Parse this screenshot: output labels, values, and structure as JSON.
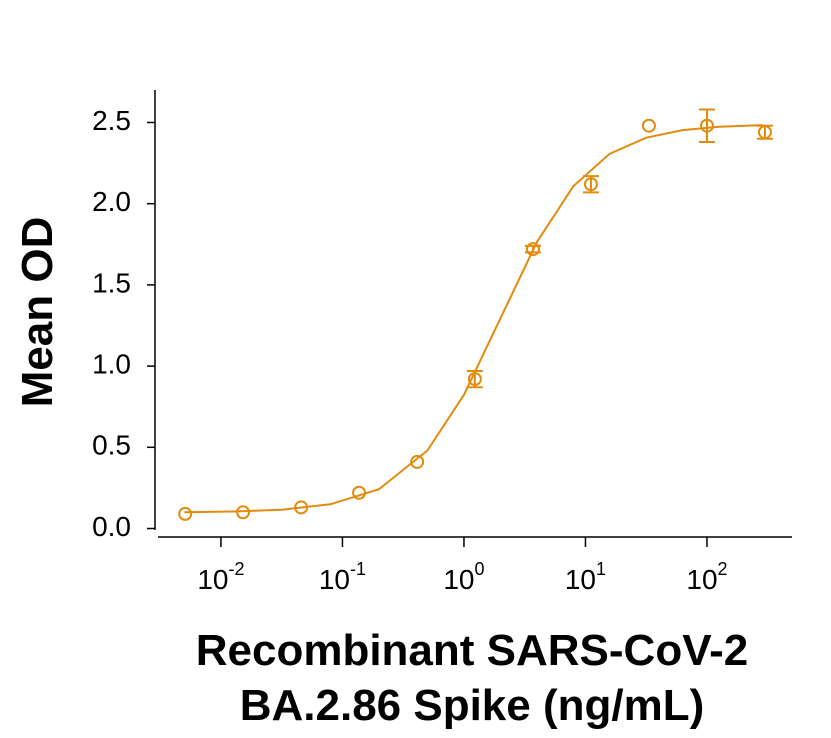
{
  "chart_data": {
    "type": "scatter",
    "xlabel": [
      "Recombinant SARS-CoV-2",
      "BA.2.86 Spike (ng/mL)"
    ],
    "ylabel": "Mean OD",
    "color": "#e38b0d",
    "xscale": "log",
    "xlim": [
      0.003,
      500
    ],
    "ylim": [
      -0.04,
      2.7
    ],
    "xticks": [
      {
        "value": 0.01,
        "label": "10",
        "exponent": "-2"
      },
      {
        "value": 0.1,
        "label": "10",
        "exponent": "-1"
      },
      {
        "value": 1,
        "label": "10",
        "exponent": "0"
      },
      {
        "value": 10,
        "label": "10",
        "exponent": "1"
      },
      {
        "value": 100,
        "label": "10",
        "exponent": "2"
      }
    ],
    "yticks": [
      {
        "value": 0,
        "label": "0.0"
      },
      0.5,
      {
        "value": 1,
        "label": "1.0"
      },
      1.5,
      {
        "value": 2,
        "label": "2.0"
      },
      2.5
    ],
    "x": [
      0.00508,
      0.0152,
      0.0457,
      0.137,
      0.412,
      1.23,
      3.7,
      11.1,
      33.3,
      100,
      300
    ],
    "values": [
      0.09,
      0.1,
      0.13,
      0.22,
      0.41,
      0.92,
      1.72,
      2.12,
      2.48,
      2.48,
      2.44
    ],
    "errors": [
      null,
      null,
      null,
      null,
      null,
      0.05,
      0.02,
      0.05,
      null,
      0.1,
      0.04
    ],
    "fit": {
      "x": [
        0.005,
        0.0126,
        0.0316,
        0.0794,
        0.2,
        0.5,
        1,
        2,
        3.98,
        7.94,
        15.8,
        31.6,
        63.1,
        126,
        288
      ],
      "values": [
        0.1,
        0.105,
        0.116,
        0.149,
        0.242,
        0.48,
        0.824,
        1.295,
        1.763,
        2.107,
        2.307,
        2.406,
        2.453,
        2.474,
        2.484
      ]
    }
  }
}
